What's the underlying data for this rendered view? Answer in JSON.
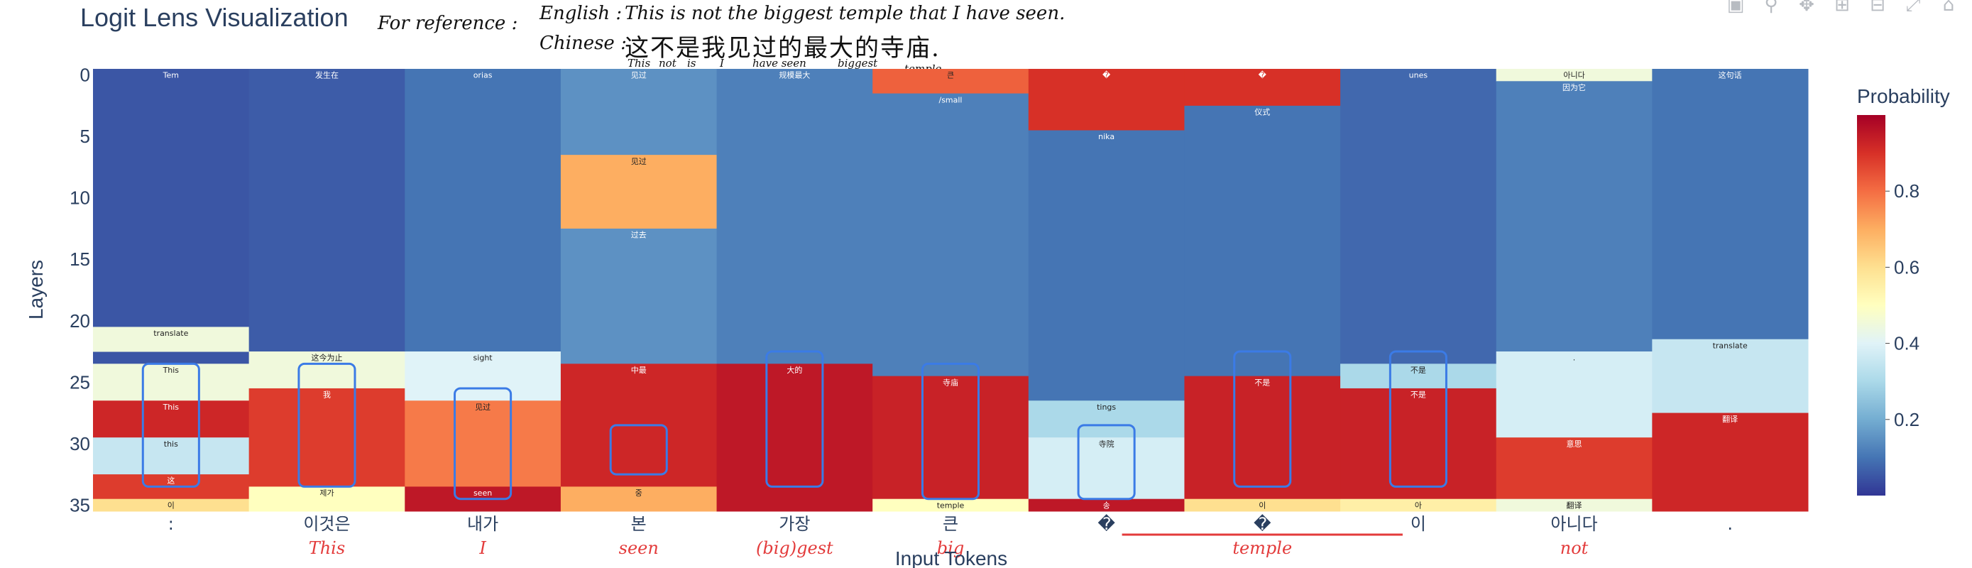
{
  "title": "Logit Lens Visualization",
  "handwritten_note": {
    "label": "For reference :",
    "english_label": "English :",
    "english_text": "This is not the biggest temple that I have seen.",
    "chinese_label": "Chinese :",
    "chinese_text": "这不是我见过的最大的寺庙.",
    "gloss": [
      "This",
      "not",
      "is",
      "I",
      "have seen",
      "biggest",
      "temple"
    ]
  },
  "toolbar": {
    "icons": [
      "camera-icon",
      "zoom-icon",
      "pan-icon",
      "zoom-in-icon",
      "zoom-out-icon",
      "autoscale-icon",
      "home-icon"
    ]
  },
  "chart_data": {
    "type": "heatmap",
    "title": "Logit Lens Visualization",
    "xlabel": "Input Tokens",
    "ylabel": "Layers",
    "colorbar_title": "Probability",
    "colorscale": "RdYlBu_r",
    "zlim": [
      0,
      1
    ],
    "colorbar_ticks": [
      0.2,
      0.4,
      0.6,
      0.8
    ],
    "y_ticks": [
      0,
      5,
      10,
      15,
      20,
      25,
      30,
      35
    ],
    "x_tokens": [
      ":",
      "이것은",
      "내가",
      "본",
      "가장",
      "큰",
      "�",
      "�",
      "이",
      "아니다",
      "."
    ],
    "x_translations": [
      "",
      "This",
      "I",
      "seen",
      "(big)gest",
      "big",
      "",
      "temple",
      "",
      "not",
      ""
    ],
    "columns": [
      {
        "token": ":",
        "segments": [
          {
            "from": 0,
            "to": 23,
            "p": 0.05,
            "text": "Tem"
          },
          {
            "from": 21,
            "to": 22,
            "p": 0.45,
            "text": "translate"
          },
          {
            "from": 24,
            "to": 26,
            "p": 0.45,
            "text": "This"
          },
          {
            "from": 27,
            "to": 29,
            "p": 0.92,
            "text": "This"
          },
          {
            "from": 30,
            "to": 32,
            "p": 0.35,
            "text": "this"
          },
          {
            "from": 33,
            "to": 34,
            "p": 0.88,
            "text": "这"
          },
          {
            "from": 35,
            "to": 35,
            "p": 0.6,
            "text": "이"
          }
        ]
      },
      {
        "token": "이것은",
        "segments": [
          {
            "from": 0,
            "to": 22,
            "p": 0.06,
            "text": "发生在"
          },
          {
            "from": 23,
            "to": 25,
            "p": 0.45,
            "text": "这今为止"
          },
          {
            "from": 26,
            "to": 33,
            "p": 0.88,
            "text": "我"
          },
          {
            "from": 34,
            "to": 35,
            "p": 0.5,
            "text": "제가"
          }
        ]
      },
      {
        "token": "내가",
        "segments": [
          {
            "from": 0,
            "to": 22,
            "p": 0.1,
            "text": "orias"
          },
          {
            "from": 23,
            "to": 26,
            "p": 0.4,
            "text": "sight"
          },
          {
            "from": 27,
            "to": 33,
            "p": 0.78,
            "text": "见过"
          },
          {
            "from": 34,
            "to": 35,
            "p": 0.95,
            "text": "seen"
          }
        ]
      },
      {
        "token": "본",
        "segments": [
          {
            "from": 0,
            "to": 6,
            "p": 0.15,
            "text": "见过"
          },
          {
            "from": 7,
            "to": 12,
            "p": 0.7,
            "text": "见过"
          },
          {
            "from": 13,
            "to": 23,
            "p": 0.15,
            "text": "过去"
          },
          {
            "from": 24,
            "to": 33,
            "p": 0.92,
            "text": "中最"
          },
          {
            "from": 34,
            "to": 35,
            "p": 0.7,
            "text": "중"
          }
        ]
      },
      {
        "token": "가장",
        "segments": [
          {
            "from": 0,
            "to": 23,
            "p": 0.12,
            "text": "规模最大"
          },
          {
            "from": 24,
            "to": 35,
            "p": 0.95,
            "text": "大的"
          }
        ]
      },
      {
        "token": "큰",
        "segments": [
          {
            "from": 0,
            "to": 1,
            "p": 0.82,
            "text": "큰"
          },
          {
            "from": 2,
            "to": 24,
            "p": 0.12,
            "text": "/small"
          },
          {
            "from": 25,
            "to": 34,
            "p": 0.93,
            "text": "寺庙"
          },
          {
            "from": 35,
            "to": 35,
            "p": 0.5,
            "text": "temple"
          }
        ]
      },
      {
        "token": "�",
        "segments": [
          {
            "from": 0,
            "to": 4,
            "p": 0.9,
            "text": "�"
          },
          {
            "from": 5,
            "to": 26,
            "p": 0.1,
            "text": "nika"
          },
          {
            "from": 27,
            "to": 29,
            "p": 0.3,
            "text": "tings"
          },
          {
            "from": 30,
            "to": 34,
            "p": 0.38,
            "text": "寺院"
          },
          {
            "from": 35,
            "to": 35,
            "p": 0.95,
            "text": "송"
          }
        ]
      },
      {
        "token": "�",
        "segments": [
          {
            "from": 0,
            "to": 2,
            "p": 0.9,
            "text": "�"
          },
          {
            "from": 3,
            "to": 24,
            "p": 0.1,
            "text": "仪式"
          },
          {
            "from": 25,
            "to": 34,
            "p": 0.93,
            "text": "不是"
          },
          {
            "from": 35,
            "to": 35,
            "p": 0.6,
            "text": "이"
          }
        ]
      },
      {
        "token": "이",
        "segments": [
          {
            "from": 0,
            "to": 23,
            "p": 0.08,
            "text": "unes"
          },
          {
            "from": 24,
            "to": 25,
            "p": 0.3,
            "text": "不是"
          },
          {
            "from": 26,
            "to": 34,
            "p": 0.93,
            "text": "不是"
          },
          {
            "from": 35,
            "to": 35,
            "p": 0.55,
            "text": "아"
          }
        ]
      },
      {
        "token": "아니다",
        "segments": [
          {
            "from": 0,
            "to": 0,
            "p": 0.45,
            "text": "아니다"
          },
          {
            "from": 1,
            "to": 22,
            "p": 0.12,
            "text": "因为它"
          },
          {
            "from": 23,
            "to": 29,
            "p": 0.38,
            "text": "."
          },
          {
            "from": 30,
            "to": 34,
            "p": 0.88,
            "text": "意思"
          },
          {
            "from": 35,
            "to": 35,
            "p": 0.45,
            "text": "翻译"
          }
        ]
      },
      {
        "token": ".",
        "segments": [
          {
            "from": 0,
            "to": 21,
            "p": 0.1,
            "text": "这句话"
          },
          {
            "from": 22,
            "to": 27,
            "p": 0.35,
            "text": "translate"
          },
          {
            "from": 28,
            "to": 35,
            "p": 0.92,
            "text": "翻译"
          }
        ]
      }
    ],
    "boxes": [
      {
        "col": 0,
        "from": 24,
        "to": 33
      },
      {
        "col": 1,
        "from": 24,
        "to": 33
      },
      {
        "col": 2,
        "from": 26,
        "to": 34
      },
      {
        "col": 3,
        "from": 29,
        "to": 32
      },
      {
        "col": 4,
        "from": 23,
        "to": 33
      },
      {
        "col": 5,
        "from": 24,
        "to": 34
      },
      {
        "col": 6,
        "from": 29,
        "to": 34
      },
      {
        "col": 7,
        "from": 23,
        "to": 33
      },
      {
        "col": 8,
        "from": 23,
        "to": 33
      }
    ]
  },
  "colors": {
    "title": "#2a3f5f",
    "annotation_red": "#e33b3b",
    "box_blue": "#3b7be6"
  }
}
